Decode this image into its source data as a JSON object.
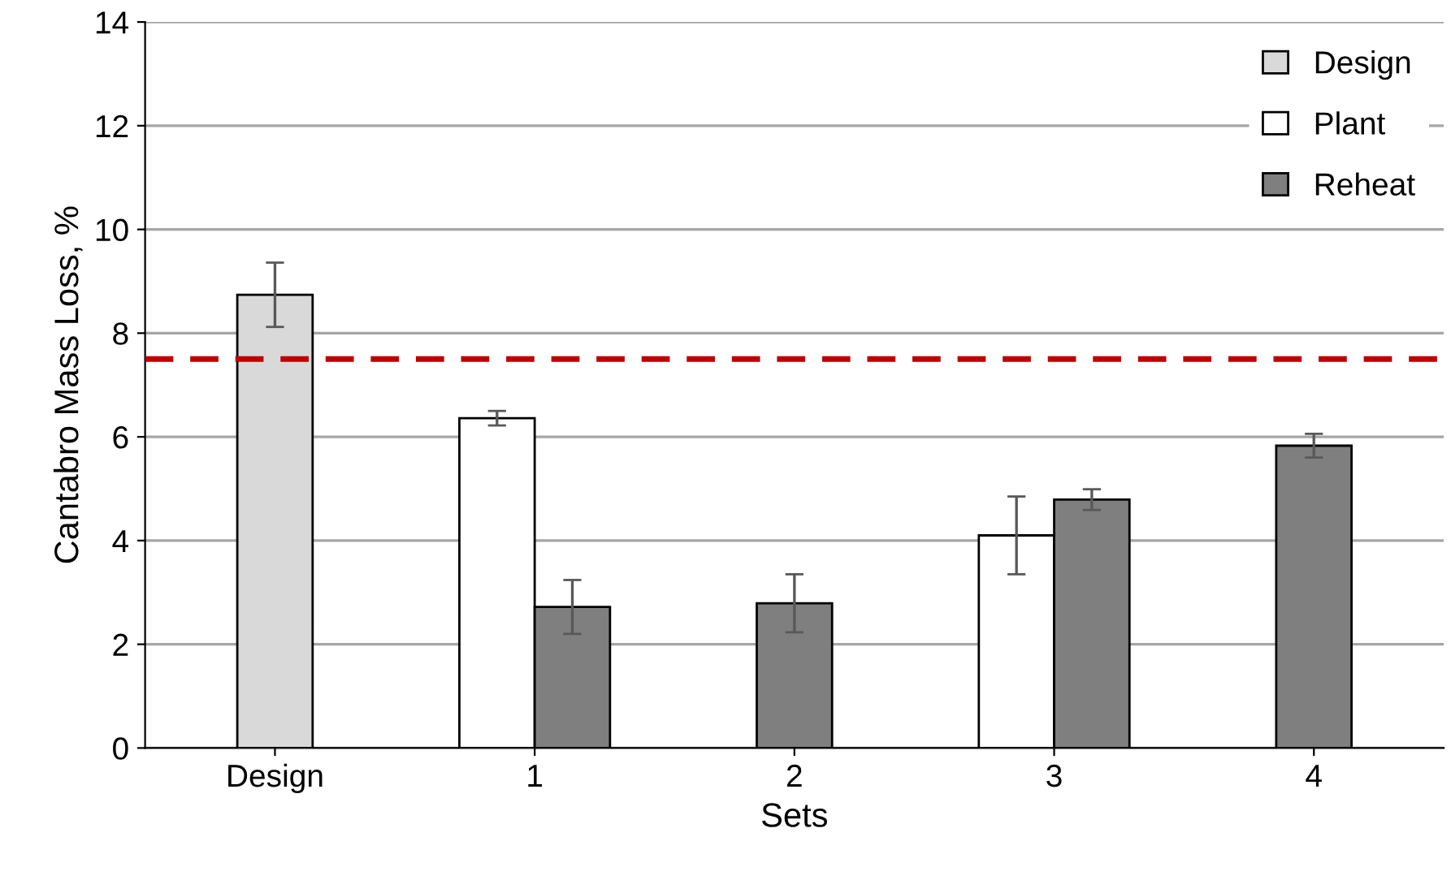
{
  "chart_data": {
    "type": "bar",
    "xlabel": "Sets",
    "ylabel": "Cantabro Mass Loss, %",
    "categories": [
      "Design",
      "1",
      "2",
      "3",
      "4"
    ],
    "series": [
      {
        "name": "Design",
        "color": "#d9d9d9",
        "values": [
          8.74,
          null,
          null,
          null,
          null
        ],
        "errors": [
          0.62,
          null,
          null,
          null,
          null
        ]
      },
      {
        "name": "Plant",
        "color": "#ffffff",
        "values": [
          null,
          6.36,
          null,
          4.1,
          null
        ],
        "errors": [
          null,
          0.14,
          null,
          0.75,
          null
        ]
      },
      {
        "name": "Reheat",
        "color": "#7f7f7f",
        "values": [
          null,
          2.72,
          2.79,
          4.79,
          5.83
        ],
        "errors": [
          null,
          0.52,
          0.56,
          0.2,
          0.23
        ]
      }
    ],
    "ylim": [
      0,
      14
    ],
    "yticks": [
      0,
      2,
      4,
      6,
      8,
      10,
      12,
      14
    ],
    "grid": "y",
    "legend": "top right",
    "ref_lines": [
      {
        "axis": "y",
        "value": 7.5,
        "color": "#c00000",
        "line_style": "dashed"
      }
    ]
  }
}
